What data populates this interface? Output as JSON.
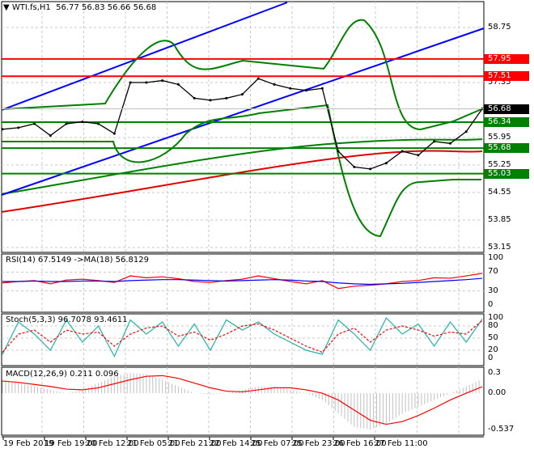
{
  "header": {
    "symbol": "WTI.fs,H1",
    "ohlc": "56.77 56.83 56.66 56.68"
  },
  "colors": {
    "up_level": "#ff0000",
    "down_level": "#008000",
    "trend": "#0000ff",
    "current": "#000000",
    "rsi": "#ff0000",
    "rsi_ma": "#0000ff",
    "stoch_k": "#20b2aa",
    "stoch_d": "#ff0000",
    "macd": "#c0c0c0",
    "signal": "#ff0000"
  },
  "chart_data": [
    {
      "type": "line",
      "title": "WTI.fs,H1",
      "ylim": [
        53.15,
        58.75
      ],
      "yticks": [
        "58.75",
        "57.35",
        "55.95",
        "55.25",
        "54.55",
        "53.85",
        "53.15"
      ],
      "close": [
        56.16,
        56.2,
        56.3,
        56.0,
        56.3,
        56.35,
        56.3,
        56.05,
        57.35,
        57.35,
        57.4,
        57.3,
        56.95,
        56.9,
        56.95,
        57.05,
        57.45,
        57.3,
        57.2,
        57.15,
        57.2,
        55.6,
        55.2,
        55.15,
        55.3,
        55.6,
        55.5,
        55.85,
        55.8,
        56.1,
        56.68
      ],
      "levels": [
        {
          "value": "57.95",
          "kind": "resistance"
        },
        {
          "value": "57.51",
          "kind": "resistance"
        },
        {
          "value": "56.34",
          "kind": "support"
        },
        {
          "value": "55.68",
          "kind": "support"
        },
        {
          "value": "55.03",
          "kind": "support"
        }
      ],
      "current_price": "56.68",
      "xticks": [
        "19 Feb 2019",
        "19 Feb 19:00",
        "20 Feb 12:00",
        "21 Feb 05:00",
        "21 Feb 21:00",
        "22 Feb 14:00",
        "25 Feb 07:00",
        "25 Feb 23:00",
        "26 Feb 16:00",
        "27 Feb 11:00"
      ]
    },
    {
      "type": "line",
      "title": "RSI(14) 67.5149  ->MA(18) 56.8129",
      "ylim": [
        0,
        100
      ],
      "yticks": [
        "100",
        "70",
        "30",
        "0"
      ],
      "rsi": [
        47,
        50,
        52,
        45,
        53,
        55,
        52,
        48,
        62,
        58,
        60,
        56,
        50,
        48,
        52,
        55,
        62,
        56,
        50,
        45,
        52,
        35,
        40,
        42,
        45,
        50,
        52,
        58,
        57,
        62,
        67.5
      ],
      "ma": [
        50,
        50,
        51,
        50,
        50,
        51,
        51,
        50,
        52,
        53,
        54,
        54,
        53,
        52,
        51,
        52,
        53,
        54,
        53,
        51,
        50,
        47,
        45,
        44,
        45,
        46,
        48,
        50,
        52,
        54,
        56.8
      ]
    },
    {
      "type": "line",
      "title": "Stoch(5,3,3) 96.7078 93.4611",
      "ylim": [
        0,
        100
      ],
      "yticks": [
        "100",
        "80",
        "50",
        "20",
        "0"
      ],
      "k": [
        10,
        90,
        60,
        20,
        95,
        40,
        80,
        5,
        95,
        60,
        90,
        30,
        85,
        20,
        95,
        70,
        90,
        60,
        40,
        20,
        10,
        95,
        60,
        20,
        100,
        60,
        85,
        30,
        90,
        40,
        97
      ],
      "d": [
        15,
        60,
        70,
        40,
        70,
        60,
        65,
        30,
        60,
        75,
        80,
        55,
        65,
        45,
        60,
        80,
        85,
        70,
        50,
        30,
        15,
        60,
        75,
        40,
        70,
        80,
        70,
        55,
        65,
        60,
        93.5
      ]
    },
    {
      "type": "bar",
      "title": "MACD(12,26,9) 0.211 0.096",
      "ylim": [
        -0.537,
        0.3
      ],
      "yticks": [
        "0.3",
        "0.00",
        "-0.537"
      ],
      "macd": [
        0.2,
        0.15,
        0.1,
        0.05,
        0,
        0.05,
        0.15,
        0.25,
        0.3,
        0.28,
        0.2,
        0.1,
        0,
        -0.02,
        0,
        0.05,
        0.1,
        0.1,
        0.05,
        0,
        -0.1,
        -0.3,
        -0.5,
        -0.537,
        -0.45,
        -0.3,
        -0.2,
        -0.1,
        0,
        0.1,
        0.211
      ],
      "signal": [
        0.18,
        0.16,
        0.13,
        0.1,
        0.06,
        0.05,
        0.08,
        0.14,
        0.2,
        0.25,
        0.26,
        0.22,
        0.15,
        0.08,
        0.03,
        0.02,
        0.05,
        0.08,
        0.08,
        0.05,
        0,
        -0.1,
        -0.25,
        -0.4,
        -0.46,
        -0.42,
        -0.33,
        -0.22,
        -0.1,
        0,
        0.096
      ]
    }
  ]
}
